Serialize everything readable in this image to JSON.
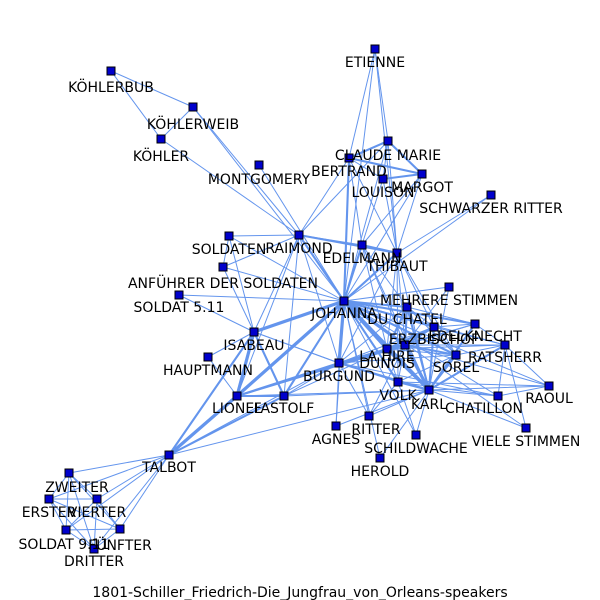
{
  "caption": "1801-Schiller_Friedrich-Die_Jungfrau_von_Orleans-speakers",
  "colors": {
    "edge": "#6495ed",
    "node": "#0000cc",
    "node_outline": "#000000"
  },
  "nodes": [
    {
      "id": "ETIENNE",
      "label": "ETIENNE"
    },
    {
      "id": "KOEHLERBUB",
      "label": "KÖHLERBUB"
    },
    {
      "id": "KOEHLERWEIB",
      "label": "KÖHLERWEIB"
    },
    {
      "id": "KOEHLER",
      "label": "KÖHLER"
    },
    {
      "id": "CLAUDE_MARIE",
      "label": "CLAUDE MARIE"
    },
    {
      "id": "BERTRAND",
      "label": "BERTRAND"
    },
    {
      "id": "MONTGOMERY",
      "label": "MONTGOMERY"
    },
    {
      "id": "LOUISON",
      "label": "LOUISON"
    },
    {
      "id": "MARGOT",
      "label": "MARGOT"
    },
    {
      "id": "SCHWARZER_RITTER",
      "label": "SCHWARZER RITTER"
    },
    {
      "id": "SOLDATEN",
      "label": "SOLDATEN"
    },
    {
      "id": "RAIMOND",
      "label": "RAIMOND"
    },
    {
      "id": "EDELMANN",
      "label": "EDELMANN"
    },
    {
      "id": "THIBAUT",
      "label": "THIBAUT"
    },
    {
      "id": "ANFUEHRER",
      "label": "ANFÜHRER DER SOLDATEN"
    },
    {
      "id": "MEHRERE_STIMMEN",
      "label": "MEHRERE STIMMEN"
    },
    {
      "id": "SOLDAT_511",
      "label": "SOLDAT 5.11"
    },
    {
      "id": "JOHANNA",
      "label": "JOHANNA"
    },
    {
      "id": "DU_CHATEL",
      "label": "DU CHATEL"
    },
    {
      "id": "EDELKNECHT",
      "label": "EDELKNECHT"
    },
    {
      "id": "ERZBISCHOF",
      "label": "ERZBISCHOF"
    },
    {
      "id": "ISABEAU",
      "label": "ISABEAU"
    },
    {
      "id": "LA_HIRE",
      "label": "LA HIRE"
    },
    {
      "id": "RATSHERR",
      "label": "RATSHERR"
    },
    {
      "id": "DUNOIS",
      "label": "DUNOIS"
    },
    {
      "id": "HAUPTMANN",
      "label": "HAUPTMANN"
    },
    {
      "id": "SOREL",
      "label": "SOREL"
    },
    {
      "id": "BURGUND",
      "label": "BURGUND"
    },
    {
      "id": "VOLK",
      "label": "VOLK"
    },
    {
      "id": "RAOUL",
      "label": "RAOUL"
    },
    {
      "id": "KARL",
      "label": "KARL"
    },
    {
      "id": "LIONEL",
      "label": "LIONEL"
    },
    {
      "id": "FASTOLF",
      "label": "FASTOLF"
    },
    {
      "id": "CHATILLON",
      "label": "CHATILLON"
    },
    {
      "id": "RITTER",
      "label": "RITTER"
    },
    {
      "id": "AGNES",
      "label": "AGNES"
    },
    {
      "id": "SCHILDWACHE",
      "label": "SCHILDWACHE"
    },
    {
      "id": "VIELE_STIMMEN",
      "label": "VIELE STIMMEN"
    },
    {
      "id": "HEROLD",
      "label": "HEROLD"
    },
    {
      "id": "TALBOT",
      "label": "TALBOT"
    },
    {
      "id": "ZWEITER",
      "label": "ZWEITER"
    },
    {
      "id": "ERSTER",
      "label": "ERSTER"
    },
    {
      "id": "VIERTER",
      "label": "VIERTER"
    },
    {
      "id": "SOLDAT_911",
      "label": "SOLDAT 9.11"
    },
    {
      "id": "FUENFTER",
      "label": "FÜNFTER"
    },
    {
      "id": "DRITTER",
      "label": "DRITTER"
    }
  ],
  "edges": [
    [
      "KOEHLERBUB",
      "KOEHLERWEIB",
      1
    ],
    [
      "KOEHLERBUB",
      "KOEHLER",
      1
    ],
    [
      "KOEHLERWEIB",
      "KOEHLER",
      1
    ],
    [
      "KOEHLERWEIB",
      "RAIMOND",
      1
    ],
    [
      "KOEHLER",
      "RAIMOND",
      1
    ],
    [
      "KOEHLERWEIB",
      "JOHANNA",
      1
    ],
    [
      "MONTGOMERY",
      "JOHANNA",
      1
    ],
    [
      "ETIENNE",
      "CLAUDE_MARIE",
      1
    ],
    [
      "ETIENNE",
      "BERTRAND",
      1
    ],
    [
      "ETIENNE",
      "THIBAUT",
      1
    ],
    [
      "ETIENNE",
      "JOHANNA",
      1
    ],
    [
      "CLAUDE_MARIE",
      "BERTRAND",
      2
    ],
    [
      "CLAUDE_MARIE",
      "MARGOT",
      2
    ],
    [
      "CLAUDE_MARIE",
      "LOUISON",
      1
    ],
    [
      "CLAUDE_MARIE",
      "THIBAUT",
      1
    ],
    [
      "CLAUDE_MARIE",
      "JOHANNA",
      1
    ],
    [
      "CLAUDE_MARIE",
      "RAIMOND",
      1
    ],
    [
      "BERTRAND",
      "MARGOT",
      2
    ],
    [
      "BERTRAND",
      "LOUISON",
      1
    ],
    [
      "BERTRAND",
      "THIBAUT",
      1
    ],
    [
      "BERTRAND",
      "JOHANNA",
      2
    ],
    [
      "BERTRAND",
      "RAIMOND",
      1
    ],
    [
      "BERTRAND",
      "EDELMANN",
      1
    ],
    [
      "LOUISON",
      "MARGOT",
      2
    ],
    [
      "LOUISON",
      "THIBAUT",
      1
    ],
    [
      "LOUISON",
      "JOHANNA",
      1
    ],
    [
      "MARGOT",
      "THIBAUT",
      1
    ],
    [
      "MARGOT",
      "JOHANNA",
      1
    ],
    [
      "MARGOT",
      "EDELMANN",
      1
    ],
    [
      "SCHWARZER_RITTER",
      "JOHANNA",
      1
    ],
    [
      "SCHWARZER_RITTER",
      "THIBAUT",
      1
    ],
    [
      "SOLDATEN",
      "RAIMOND",
      1
    ],
    [
      "SOLDATEN",
      "JOHANNA",
      1
    ],
    [
      "SOLDATEN",
      "ISABEAU",
      1
    ],
    [
      "RAIMOND",
      "JOHANNA",
      2
    ],
    [
      "RAIMOND",
      "THIBAUT",
      2
    ],
    [
      "RAIMOND",
      "EDELMANN",
      1
    ],
    [
      "RAIMOND",
      "ISABEAU",
      1
    ],
    [
      "RAIMOND",
      "LIONEL",
      1
    ],
    [
      "RAIMOND",
      "BURGUND",
      1
    ],
    [
      "RAIMOND",
      "FASTOLF",
      1
    ],
    [
      "RAIMOND",
      "ANFUEHRER",
      1
    ],
    [
      "EDELMANN",
      "THIBAUT",
      2
    ],
    [
      "EDELMANN",
      "JOHANNA",
      2
    ],
    [
      "EDELMANN",
      "KARL",
      1
    ],
    [
      "EDELMANN",
      "DUNOIS",
      1
    ],
    [
      "EDELMANN",
      "LA_HIRE",
      1
    ],
    [
      "EDELMANN",
      "DU_CHATEL",
      1
    ],
    [
      "THIBAUT",
      "JOHANNA",
      2
    ],
    [
      "THIBAUT",
      "KARL",
      1
    ],
    [
      "THIBAUT",
      "DUNOIS",
      1
    ],
    [
      "THIBAUT",
      "LA_HIRE",
      1
    ],
    [
      "THIBAUT",
      "ERZBISCHOF",
      1
    ],
    [
      "THIBAUT",
      "BURGUND",
      1
    ],
    [
      "THIBAUT",
      "SOREL",
      1
    ],
    [
      "THIBAUT",
      "VOLK",
      1
    ],
    [
      "ANFUEHRER",
      "JOHANNA",
      1
    ],
    [
      "ANFUEHRER",
      "ISABEAU",
      1
    ],
    [
      "ANFUEHRER",
      "SOLDATEN",
      1
    ],
    [
      "SOLDAT_511",
      "JOHANNA",
      1
    ],
    [
      "SOLDAT_511",
      "ISABEAU",
      1
    ],
    [
      "HAUPTMANN",
      "ISABEAU",
      1
    ],
    [
      "HAUPTMANN",
      "LIONEL",
      1
    ],
    [
      "MEHRERE_STIMMEN",
      "JOHANNA",
      1
    ],
    [
      "MEHRERE_STIMMEN",
      "KARL",
      1
    ],
    [
      "MEHRERE_STIMMEN",
      "DUNOIS",
      1
    ],
    [
      "JOHANNA",
      "DUNOIS",
      3
    ],
    [
      "JOHANNA",
      "KARL",
      3
    ],
    [
      "JOHANNA",
      "LA_HIRE",
      3
    ],
    [
      "JOHANNA",
      "ERZBISCHOF",
      2
    ],
    [
      "JOHANNA",
      "DU_CHATEL",
      2
    ],
    [
      "JOHANNA",
      "BURGUND",
      3
    ],
    [
      "JOHANNA",
      "SOREL",
      2
    ],
    [
      "JOHANNA",
      "ISABEAU",
      3
    ],
    [
      "JOHANNA",
      "LIONEL",
      3
    ],
    [
      "JOHANNA",
      "FASTOLF",
      2
    ],
    [
      "JOHANNA",
      "TALBOT",
      2
    ],
    [
      "JOHANNA",
      "VOLK",
      2
    ],
    [
      "JOHANNA",
      "RITTER",
      1
    ],
    [
      "JOHANNA",
      "AGNES",
      1
    ],
    [
      "JOHANNA",
      "EDELKNECHT",
      2
    ],
    [
      "JOHANNA",
      "RATSHERR",
      1
    ],
    [
      "JOHANNA",
      "CHATILLON",
      1
    ],
    [
      "JOHANNA",
      "SCHILDWACHE",
      1
    ],
    [
      "JOHANNA",
      "HEROLD",
      1
    ],
    [
      "JOHANNA",
      "RAOUL",
      1
    ],
    [
      "JOHANNA",
      "VIELE_STIMMEN",
      1
    ],
    [
      "DUNOIS",
      "KARL",
      3
    ],
    [
      "DUNOIS",
      "LA_HIRE",
      3
    ],
    [
      "DUNOIS",
      "DU_CHATEL",
      2
    ],
    [
      "DUNOIS",
      "ERZBISCHOF",
      2
    ],
    [
      "DUNOIS",
      "SOREL",
      2
    ],
    [
      "DUNOIS",
      "BURGUND",
      2
    ],
    [
      "DUNOIS",
      "VOLK",
      1
    ],
    [
      "DUNOIS",
      "EDELKNECHT",
      1
    ],
    [
      "DUNOIS",
      "RATSHERR",
      1
    ],
    [
      "DUNOIS",
      "RAOUL",
      1
    ],
    [
      "DUNOIS",
      "LIONEL",
      2
    ],
    [
      "DUNOIS",
      "RITTER",
      1
    ],
    [
      "KARL",
      "LA_HIRE",
      3
    ],
    [
      "KARL",
      "DU_CHATEL",
      2
    ],
    [
      "KARL",
      "ERZBISCHOF",
      2
    ],
    [
      "KARL",
      "SOREL",
      2
    ],
    [
      "KARL",
      "BURGUND",
      2
    ],
    [
      "KARL",
      "VOLK",
      2
    ],
    [
      "KARL",
      "CHATILLON",
      1
    ],
    [
      "KARL",
      "RAOUL",
      1
    ],
    [
      "KARL",
      "RATSHERR",
      2
    ],
    [
      "KARL",
      "EDELKNECHT",
      2
    ],
    [
      "KARL",
      "RITTER",
      1
    ],
    [
      "KARL",
      "VIELE_STIMMEN",
      1
    ],
    [
      "KARL",
      "SCHILDWACHE",
      1
    ],
    [
      "KARL",
      "AGNES",
      1
    ],
    [
      "KARL",
      "HEROLD",
      1
    ],
    [
      "LA_HIRE",
      "DU_CHATEL",
      2
    ],
    [
      "LA_HIRE",
      "ERZBISCHOF",
      2
    ],
    [
      "LA_HIRE",
      "SOREL",
      1
    ],
    [
      "LA_HIRE",
      "BURGUND",
      2
    ],
    [
      "LA_HIRE",
      "VOLK",
      1
    ],
    [
      "LA_HIRE",
      "RATSHERR",
      1
    ],
    [
      "LA_HIRE",
      "EDELKNECHT",
      1
    ],
    [
      "LA_HIRE",
      "FASTOLF",
      1
    ],
    [
      "DU_CHATEL",
      "ERZBISCHOF",
      1
    ],
    [
      "DU_CHATEL",
      "SOREL",
      1
    ],
    [
      "DU_CHATEL",
      "EDELKNECHT",
      1
    ],
    [
      "DU_CHATEL",
      "BURGUND",
      1
    ],
    [
      "ERZBISCHOF",
      "SOREL",
      1
    ],
    [
      "ERZBISCHOF",
      "BURGUND",
      1
    ],
    [
      "ERZBISCHOF",
      "EDELKNECHT",
      1
    ],
    [
      "ERZBISCHOF",
      "RATSHERR",
      1
    ],
    [
      "SOREL",
      "BURGUND",
      1
    ],
    [
      "SOREL",
      "VOLK",
      1
    ],
    [
      "SOREL",
      "RATSHERR",
      1
    ],
    [
      "BURGUND",
      "VOLK",
      1
    ],
    [
      "BURGUND",
      "ISABEAU",
      1
    ],
    [
      "BURGUND",
      "LIONEL",
      2
    ],
    [
      "BURGUND",
      "FASTOLF",
      1
    ],
    [
      "BURGUND",
      "RITTER",
      1
    ],
    [
      "BURGUND",
      "AGNES",
      1
    ],
    [
      "BURGUND",
      "CHATILLON",
      1
    ],
    [
      "VOLK",
      "RITTER",
      1
    ],
    [
      "VOLK",
      "SCHILDWACHE",
      1
    ],
    [
      "VOLK",
      "CHATILLON",
      1
    ],
    [
      "VOLK",
      "RAOUL",
      1
    ],
    [
      "RATSHERR",
      "RAOUL",
      1
    ],
    [
      "RATSHERR",
      "CHATILLON",
      1
    ],
    [
      "EDELKNECHT",
      "RATSHERR",
      1
    ],
    [
      "CHATILLON",
      "RAOUL",
      1
    ],
    [
      "VIELE_STIMMEN",
      "RATSHERR",
      1
    ],
    [
      "ISABEAU",
      "LIONEL",
      3
    ],
    [
      "ISABEAU",
      "FASTOLF",
      2
    ],
    [
      "ISABEAU",
      "TALBOT",
      2
    ],
    [
      "ISABEAU",
      "BURGUND",
      1
    ],
    [
      "LIONEL",
      "FASTOLF",
      2
    ],
    [
      "LIONEL",
      "TALBOT",
      3
    ],
    [
      "LIONEL",
      "KARL",
      1
    ],
    [
      "FASTOLF",
      "TALBOT",
      2
    ],
    [
      "FASTOLF",
      "KARL",
      1
    ],
    [
      "TALBOT",
      "ZWEITER",
      1
    ],
    [
      "TALBOT",
      "ERSTER",
      1
    ],
    [
      "TALBOT",
      "VIERTER",
      1
    ],
    [
      "TALBOT",
      "SOLDAT_911",
      1
    ],
    [
      "TALBOT",
      "FUENFTER",
      1
    ],
    [
      "TALBOT",
      "DRITTER",
      1
    ],
    [
      "TALBOT",
      "KARL",
      1
    ],
    [
      "TALBOT",
      "BURGUND",
      1
    ],
    [
      "ZWEITER",
      "ERSTER",
      1
    ],
    [
      "ZWEITER",
      "VIERTER",
      1
    ],
    [
      "ZWEITER",
      "SOLDAT_911",
      1
    ],
    [
      "ZWEITER",
      "FUENFTER",
      1
    ],
    [
      "ZWEITER",
      "DRITTER",
      1
    ],
    [
      "ERSTER",
      "VIERTER",
      1
    ],
    [
      "ERSTER",
      "SOLDAT_911",
      1
    ],
    [
      "ERSTER",
      "FUENFTER",
      1
    ],
    [
      "ERSTER",
      "DRITTER",
      1
    ],
    [
      "VIERTER",
      "SOLDAT_911",
      1
    ],
    [
      "VIERTER",
      "FUENFTER",
      1
    ],
    [
      "VIERTER",
      "DRITTER",
      1
    ],
    [
      "SOLDAT_911",
      "FUENFTER",
      1
    ],
    [
      "SOLDAT_911",
      "DRITTER",
      1
    ],
    [
      "FUENFTER",
      "DRITTER",
      1
    ]
  ]
}
